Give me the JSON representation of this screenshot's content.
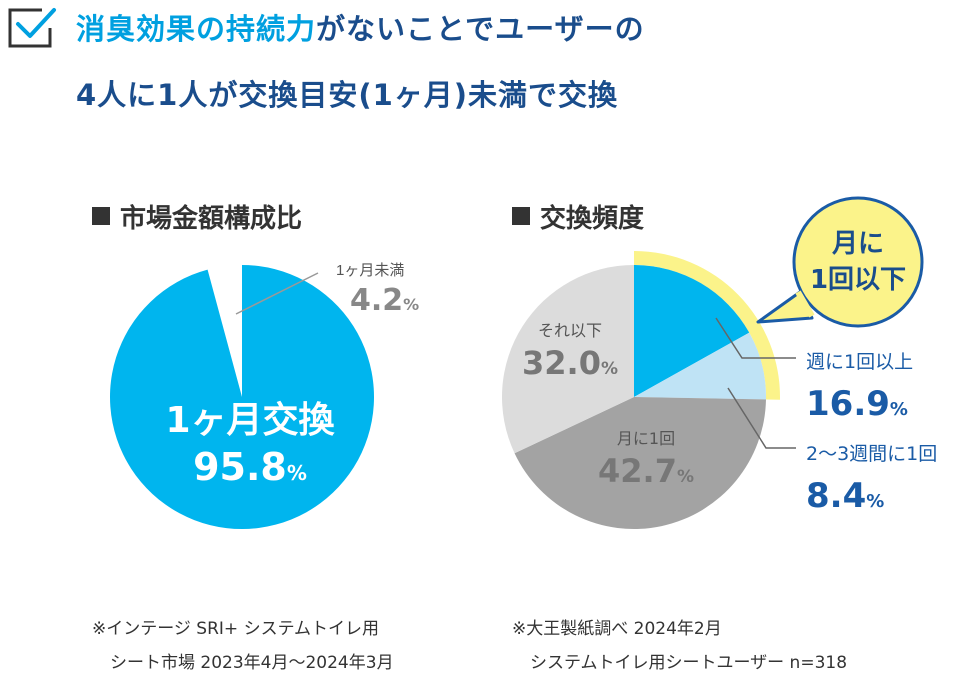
{
  "headline": {
    "line1_highlight": "消臭効果の持続力",
    "line1_rest": "がないことでユーザーの",
    "line2": "4人に1人が交換目安(1ヶ月)未満で交換"
  },
  "chart_data": [
    {
      "type": "pie",
      "title": "市場金額構成比",
      "slices": [
        {
          "label": "1ヶ月未満",
          "value": 4.2,
          "value_text": "4.2",
          "unit": "%",
          "color": "#ffffff"
        },
        {
          "label": "1ヶ月交換",
          "value": 95.8,
          "value_text": "95.8",
          "unit": "%",
          "color": "#00b5ee"
        }
      ]
    },
    {
      "type": "pie",
      "title": "交換頻度",
      "slices": [
        {
          "label": "週に1回以上",
          "value": 16.9,
          "value_text": "16.9",
          "unit": "%",
          "color": "#00b5ee"
        },
        {
          "label": "2〜3週間に1回",
          "value": 8.4,
          "value_text": "8.4",
          "unit": "%",
          "color": "#bfe3f5"
        },
        {
          "label": "月に1回",
          "value": 42.7,
          "value_text": "42.7",
          "unit": "%",
          "color": "#a3a3a3"
        },
        {
          "label": "それ以下",
          "value": 32.0,
          "value_text": "32.0",
          "unit": "%",
          "color": "#dcdcdc"
        }
      ],
      "callout": {
        "line1": "月に",
        "line2": "1回以下"
      },
      "highlight_color": "#fbf38a"
    }
  ],
  "notes": {
    "left_line1": "※インテージ SRI+ システムトイレ用",
    "left_line2": "シート市場 2023年4月〜2024年3月",
    "right_line1": "※大王製紙調べ 2024年2月",
    "right_line2": "システムトイレ用シートユーザー n=318"
  },
  "colors": {
    "heading": "#1a4d8c",
    "accent": "#00a0e0",
    "label_dark": "#1a5ba6"
  }
}
